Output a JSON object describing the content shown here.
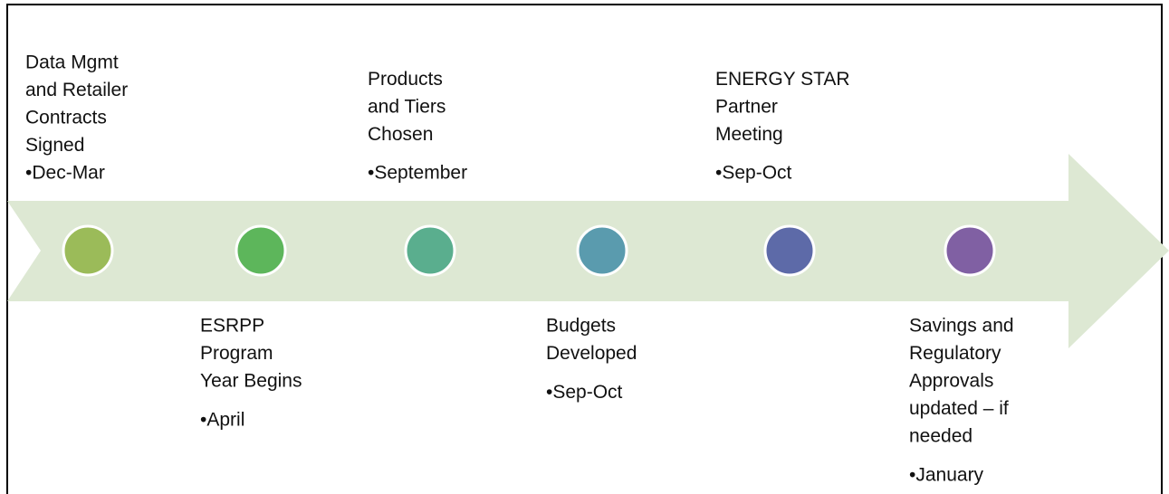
{
  "milestones": [
    {
      "lines": [
        "Data Mgmt",
        "and Retailer",
        "Contracts",
        "Signed"
      ],
      "date": "•Dec-Mar",
      "color": "#9bbb59",
      "side": "above"
    },
    {
      "lines": [
        "ESRPP",
        "Program",
        "Year Begins"
      ],
      "date": "•April",
      "color": "#5db65b",
      "side": "below"
    },
    {
      "lines": [
        "Products",
        "and Tiers",
        "Chosen"
      ],
      "date": "•September",
      "color": "#5aae8e",
      "side": "above"
    },
    {
      "lines": [
        "Budgets",
        "Developed"
      ],
      "date": "•Sep-Oct",
      "color": "#5a9bae",
      "side": "below"
    },
    {
      "lines": [
        "ENERGY STAR",
        "Partner",
        "Meeting"
      ],
      "date": "•Sep-Oct",
      "color": "#5d6aa8",
      "side": "above"
    },
    {
      "lines": [
        "Savings and",
        "Regulatory",
        "Approvals",
        "updated – if",
        "needed"
      ],
      "date": "•January",
      "color": "#8060a3",
      "side": "below"
    }
  ]
}
